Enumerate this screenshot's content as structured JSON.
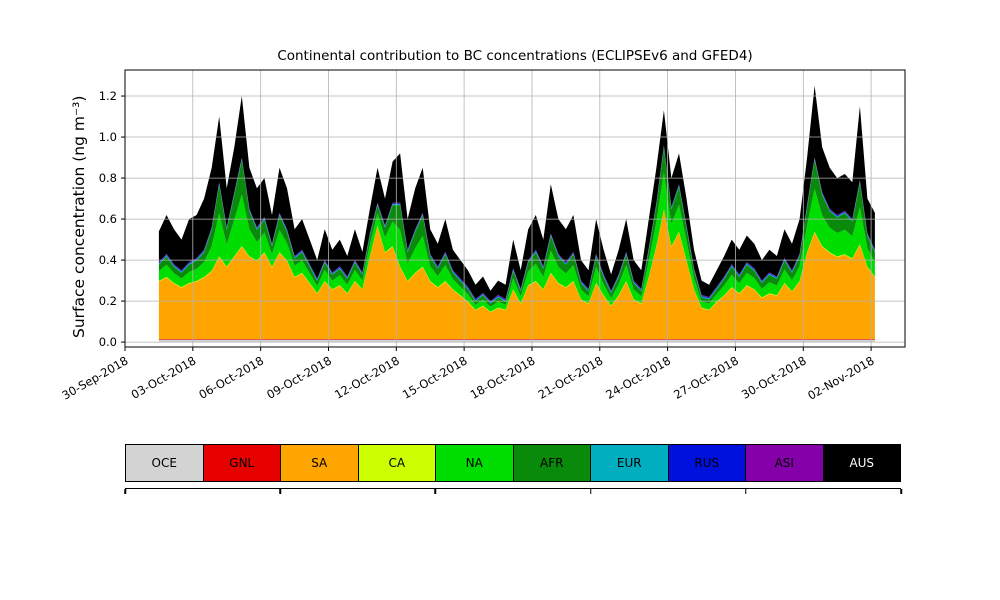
{
  "chart_data": {
    "type": "area",
    "stacked": true,
    "title": "Continental contribution to BC concentrations (ECLIPSEv6 and GFED4)",
    "ylabel": "Surface concentration (ng m⁻³)",
    "units": "ng/m3",
    "grid": true,
    "legend_position": "bottom",
    "x_domain": [
      0,
      34.5
    ],
    "x_data_range": [
      1.5,
      33.17
    ],
    "ylim": [
      -0.024,
      1.327
    ],
    "x_ticks": [
      {
        "day": 0,
        "label": "30-Sep-2018"
      },
      {
        "day": 3,
        "label": "03-Oct-2018"
      },
      {
        "day": 6,
        "label": "06-Oct-2018"
      },
      {
        "day": 9,
        "label": "09-Oct-2018"
      },
      {
        "day": 12,
        "label": "12-Oct-2018"
      },
      {
        "day": 15,
        "label": "15-Oct-2018"
      },
      {
        "day": 18,
        "label": "18-Oct-2018"
      },
      {
        "day": 21,
        "label": "21-Oct-2018"
      },
      {
        "day": 24,
        "label": "24-Oct-2018"
      },
      {
        "day": 27,
        "label": "27-Oct-2018"
      },
      {
        "day": 30,
        "label": "30-Oct-2018"
      },
      {
        "day": 33,
        "label": "02-Nov-2018"
      }
    ],
    "y_ticks": [
      0,
      0.2,
      0.4,
      0.6,
      0.8,
      1.0,
      1.2
    ],
    "series": [
      {
        "name": "OCE",
        "color": "#d3d3d3",
        "constant": 0.012
      },
      {
        "name": "GNL",
        "color": "#e60000",
        "constant": 0.003
      },
      {
        "name": "SA",
        "color": "#ffa500",
        "values": [
          0.28,
          0.3,
          0.27,
          0.25,
          0.27,
          0.28,
          0.3,
          0.33,
          0.4,
          0.35,
          0.4,
          0.45,
          0.4,
          0.38,
          0.42,
          0.35,
          0.42,
          0.38,
          0.3,
          0.32,
          0.27,
          0.22,
          0.28,
          0.24,
          0.26,
          0.22,
          0.28,
          0.24,
          0.4,
          0.55,
          0.42,
          0.45,
          0.35,
          0.28,
          0.32,
          0.35,
          0.28,
          0.25,
          0.28,
          0.24,
          0.21,
          0.18,
          0.14,
          0.16,
          0.13,
          0.15,
          0.14,
          0.24,
          0.17,
          0.26,
          0.28,
          0.24,
          0.32,
          0.27,
          0.25,
          0.28,
          0.19,
          0.17,
          0.27,
          0.21,
          0.16,
          0.21,
          0.28,
          0.19,
          0.17,
          0.3,
          0.45,
          0.63,
          0.45,
          0.52,
          0.38,
          0.24,
          0.15,
          0.14,
          0.18,
          0.21,
          0.25,
          0.22,
          0.26,
          0.24,
          0.2,
          0.22,
          0.21,
          0.27,
          0.23,
          0.28,
          0.42,
          0.52,
          0.45,
          0.42,
          0.4,
          0.41,
          0.39,
          0.46,
          0.35,
          0.3
        ]
      },
      {
        "name": "CA",
        "color": "#ccff00",
        "constant": 0.003
      },
      {
        "name": "NA",
        "color": "#00dd00",
        "values": [
          0.048,
          0.06,
          0.048,
          0.042,
          0.054,
          0.06,
          0.072,
          0.12,
          0.21,
          0.108,
          0.18,
          0.252,
          0.132,
          0.09,
          0.096,
          0.06,
          0.108,
          0.084,
          0.054,
          0.06,
          0.048,
          0.036,
          0.054,
          0.042,
          0.048,
          0.042,
          0.054,
          0.042,
          0.06,
          0.06,
          0.072,
          0.12,
          0.18,
          0.084,
          0.12,
          0.15,
          0.072,
          0.054,
          0.078,
          0.048,
          0.042,
          0.036,
          0.024,
          0.03,
          0.024,
          0.03,
          0.024,
          0.054,
          0.036,
          0.066,
          0.084,
          0.06,
          0.108,
          0.078,
          0.066,
          0.078,
          0.048,
          0.036,
          0.078,
          0.054,
          0.036,
          0.054,
          0.078,
          0.048,
          0.036,
          0.078,
          0.12,
          0.18,
          0.108,
          0.132,
          0.096,
          0.054,
          0.03,
          0.03,
          0.036,
          0.048,
          0.06,
          0.048,
          0.06,
          0.054,
          0.042,
          0.054,
          0.048,
          0.066,
          0.054,
          0.072,
          0.132,
          0.21,
          0.15,
          0.12,
          0.114,
          0.12,
          0.108,
          0.18,
          0.09,
          0.072
        ]
      },
      {
        "name": "AFR",
        "color": "#0a8a0a",
        "values": [
          0.032,
          0.04,
          0.032,
          0.028,
          0.036,
          0.04,
          0.048,
          0.08,
          0.14,
          0.072,
          0.12,
          0.168,
          0.088,
          0.06,
          0.064,
          0.04,
          0.072,
          0.056,
          0.036,
          0.04,
          0.032,
          0.024,
          0.036,
          0.028,
          0.032,
          0.028,
          0.036,
          0.028,
          0.04,
          0.04,
          0.048,
          0.08,
          0.12,
          0.056,
          0.08,
          0.1,
          0.048,
          0.036,
          0.052,
          0.032,
          0.028,
          0.024,
          0.016,
          0.02,
          0.016,
          0.02,
          0.016,
          0.036,
          0.024,
          0.044,
          0.056,
          0.04,
          0.072,
          0.052,
          0.044,
          0.052,
          0.032,
          0.024,
          0.052,
          0.036,
          0.024,
          0.036,
          0.052,
          0.032,
          0.024,
          0.052,
          0.08,
          0.12,
          0.072,
          0.088,
          0.064,
          0.036,
          0.02,
          0.02,
          0.024,
          0.032,
          0.04,
          0.032,
          0.04,
          0.036,
          0.028,
          0.036,
          0.032,
          0.044,
          0.036,
          0.048,
          0.088,
          0.14,
          0.1,
          0.08,
          0.076,
          0.08,
          0.072,
          0.12,
          0.06,
          0.048
        ]
      },
      {
        "name": "EUR",
        "color": "#00aec0",
        "constant": 0.005
      },
      {
        "name": "RUS",
        "color": "#0011dd",
        "constant": 0.004
      },
      {
        "name": "ASI",
        "color": "#8400a8",
        "constant": 0.003
      },
      {
        "name": "AUS",
        "color": "#000000",
        "label_color": "#ffffff",
        "values": [
          0.15,
          0.19,
          0.17,
          0.15,
          0.21,
          0.21,
          0.25,
          0.29,
          0.32,
          0.19,
          0.22,
          0.3,
          0.2,
          0.19,
          0.19,
          0.14,
          0.22,
          0.2,
          0.13,
          0.15,
          0.12,
          0.09,
          0.15,
          0.11,
          0.13,
          0.1,
          0.15,
          0.1,
          0.12,
          0.17,
          0.13,
          0.2,
          0.24,
          0.15,
          0.2,
          0.22,
          0.12,
          0.11,
          0.16,
          0.1,
          0.09,
          0.08,
          0.07,
          0.08,
          0.05,
          0.07,
          0.07,
          0.14,
          0.09,
          0.15,
          0.17,
          0.13,
          0.24,
          0.17,
          0.16,
          0.18,
          0.1,
          0.09,
          0.17,
          0.12,
          0.08,
          0.12,
          0.16,
          0.1,
          0.09,
          0.14,
          0.17,
          0.17,
          0.14,
          0.15,
          0.13,
          0.09,
          0.07,
          0.06,
          0.08,
          0.1,
          0.12,
          0.12,
          0.13,
          0.12,
          0.1,
          0.11,
          0.1,
          0.14,
          0.13,
          0.17,
          0.23,
          0.35,
          0.22,
          0.2,
          0.18,
          0.18,
          0.18,
          0.36,
          0.17,
          0.18
        ]
      }
    ]
  }
}
